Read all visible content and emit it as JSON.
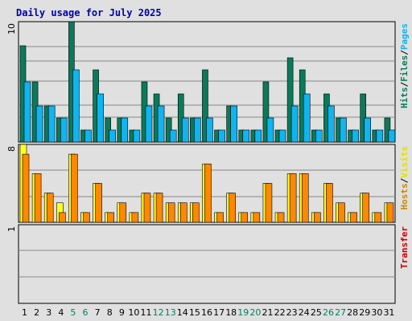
{
  "chart_data": {
    "type": "bar",
    "title": "Daily usage for July 2025",
    "categories": [
      "1",
      "2",
      "3",
      "4",
      "5",
      "6",
      "7",
      "8",
      "9",
      "10",
      "11",
      "12",
      "13",
      "14",
      "15",
      "16",
      "17",
      "18",
      "19",
      "20",
      "21",
      "22",
      "23",
      "24",
      "25",
      "26",
      "27",
      "28",
      "29",
      "30",
      "31"
    ],
    "weekend_days": [
      "5",
      "6",
      "12",
      "13",
      "19",
      "20",
      "26",
      "27"
    ],
    "colors": {
      "hits": "#0b7a5a",
      "files": "#10b4f0",
      "hosts": "#ffff22",
      "visits": "#ff8800",
      "transfer": "#cc0000",
      "weekday_label": "#000000",
      "weekend_label": "#008060",
      "grid": "#888888",
      "title": "#0000aa"
    },
    "panels": [
      {
        "name": "hits-files",
        "ymax_label": "10",
        "ylim": [
          0,
          10
        ],
        "side_label": [
          {
            "text": "Hits",
            "color": "#0b7a5a"
          },
          {
            "text": "/",
            "color": "#000000"
          },
          {
            "text": "Files",
            "color": "#0b7a5a"
          },
          {
            "text": "/",
            "color": "#000000"
          },
          {
            "text": "Pages",
            "color": "#10b4f0"
          }
        ],
        "series": [
          {
            "name": "Hits",
            "values": [
              8,
              5,
              3,
              2,
              10,
              1,
              6,
              2,
              2,
              1,
              5,
              4,
              2,
              4,
              2,
              6,
              1,
              3,
              1,
              1,
              5,
              1,
              7,
              6,
              1,
              4,
              2,
              1,
              4,
              1,
              2
            ]
          },
          {
            "name": "Pages",
            "values": [
              5,
              3,
              3,
              2,
              6,
              1,
              4,
              1,
              2,
              1,
              3,
              3,
              1,
              2,
              2,
              2,
              1,
              3,
              1,
              1,
              2,
              1,
              3,
              4,
              1,
              3,
              2,
              1,
              2,
              1,
              1
            ]
          }
        ]
      },
      {
        "name": "hosts-visits",
        "ymax_label": "8",
        "ylim": [
          0,
          8
        ],
        "side_label": [
          {
            "text": "Hosts",
            "color": "#cc8800"
          },
          {
            "text": "/",
            "color": "#000000"
          },
          {
            "text": "Visits",
            "color": "#e0e000"
          }
        ],
        "series": [
          {
            "name": "Hosts",
            "values": [
              8,
              5,
              3,
              2,
              7,
              1,
              4,
              1,
              2,
              1,
              3,
              3,
              2,
              2,
              2,
              6,
              1,
              3,
              1,
              1,
              4,
              1,
              5,
              5,
              1,
              4,
              2,
              1,
              3,
              1,
              2
            ]
          },
          {
            "name": "Visits",
            "values": [
              7,
              5,
              3,
              1,
              7,
              1,
              4,
              1,
              2,
              1,
              3,
              3,
              2,
              2,
              2,
              6,
              1,
              3,
              1,
              1,
              4,
              1,
              5,
              5,
              1,
              4,
              2,
              1,
              3,
              1,
              2
            ]
          }
        ]
      },
      {
        "name": "transfer",
        "ymax_label": "1",
        "ylim": [
          0,
          1
        ],
        "side_label": [
          {
            "text": "Transfer",
            "color": "#cc0000"
          }
        ],
        "series": [
          {
            "name": "Transfer",
            "values": [
              0,
              0,
              0,
              0,
              0,
              0,
              0,
              0,
              0,
              0,
              0,
              0,
              0,
              0,
              0,
              0,
              0,
              0,
              0,
              0,
              0,
              0,
              0,
              0,
              0,
              0,
              0,
              0,
              0,
              0,
              0
            ]
          }
        ]
      }
    ]
  }
}
